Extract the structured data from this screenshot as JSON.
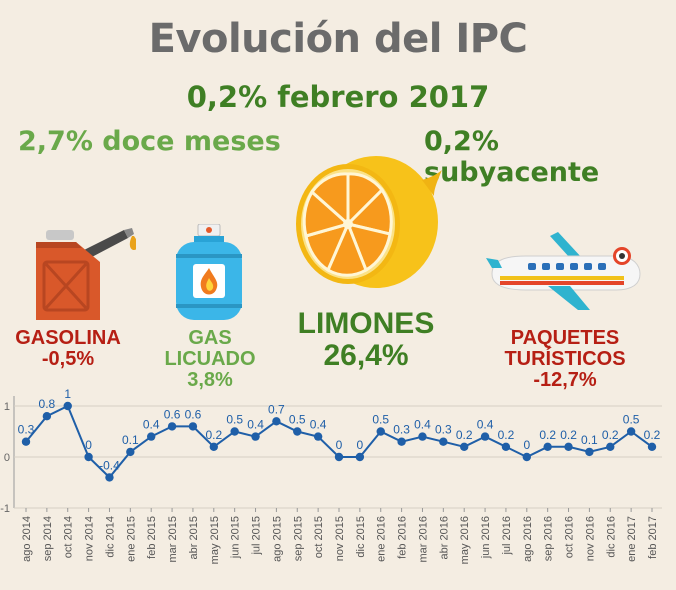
{
  "title": "Evolución del IPC",
  "subtitle": "0,2% febrero 2017",
  "headline_left": "2,7% doce meses",
  "headline_right": "0,2% subyacente",
  "items": [
    {
      "name": "GASOLINA",
      "value": "-0,5%",
      "icon": "gas-can-icon",
      "color": "#b61f14"
    },
    {
      "name": "GAS LICUADO",
      "value": "3,8%",
      "icon": "gas-cylinder-icon",
      "color": "#6aa94a"
    },
    {
      "name": "LIMONES",
      "value": "26,4%",
      "icon": "lemon-icon",
      "color": "#3f7f24"
    },
    {
      "name": "PAQUETES TURÍSTICOS",
      "value": "-12,7%",
      "icon": "airplane-icon",
      "color": "#b61f14"
    }
  ],
  "chart_data": {
    "type": "line",
    "categories": [
      "ago 2014",
      "sep 2014",
      "oct 2014",
      "nov 2014",
      "dic 2014",
      "ene 2015",
      "feb 2015",
      "mar 2015",
      "abr 2015",
      "may 2015",
      "jun 2015",
      "jul 2015",
      "ago 2015",
      "sep 2015",
      "oct 2015",
      "nov 2015",
      "dic 2015",
      "ene 2016",
      "feb 2016",
      "mar 2016",
      "abr 2016",
      "may 2016",
      "jun 2016",
      "jul 2016",
      "ago 2016",
      "sep 2016",
      "oct 2016",
      "nov 2016",
      "dic 2016",
      "ene 2017",
      "feb 2017"
    ],
    "values": [
      0.3,
      0.8,
      1,
      0,
      -0.4,
      0.1,
      0.4,
      0.6,
      0.6,
      0.2,
      0.5,
      0.4,
      0.7,
      0.5,
      0.4,
      0,
      0,
      0.5,
      0.3,
      0.4,
      0.3,
      0.2,
      0.4,
      0.2,
      0,
      0.2,
      0.2,
      0.1,
      0.2,
      0.5,
      0.2
    ],
    "ylim": [
      -1,
      1
    ],
    "yticks": [
      -1,
      0,
      1
    ],
    "grid": true,
    "line_color": "#1f5fa8",
    "label_color": "#1f5fa8"
  }
}
